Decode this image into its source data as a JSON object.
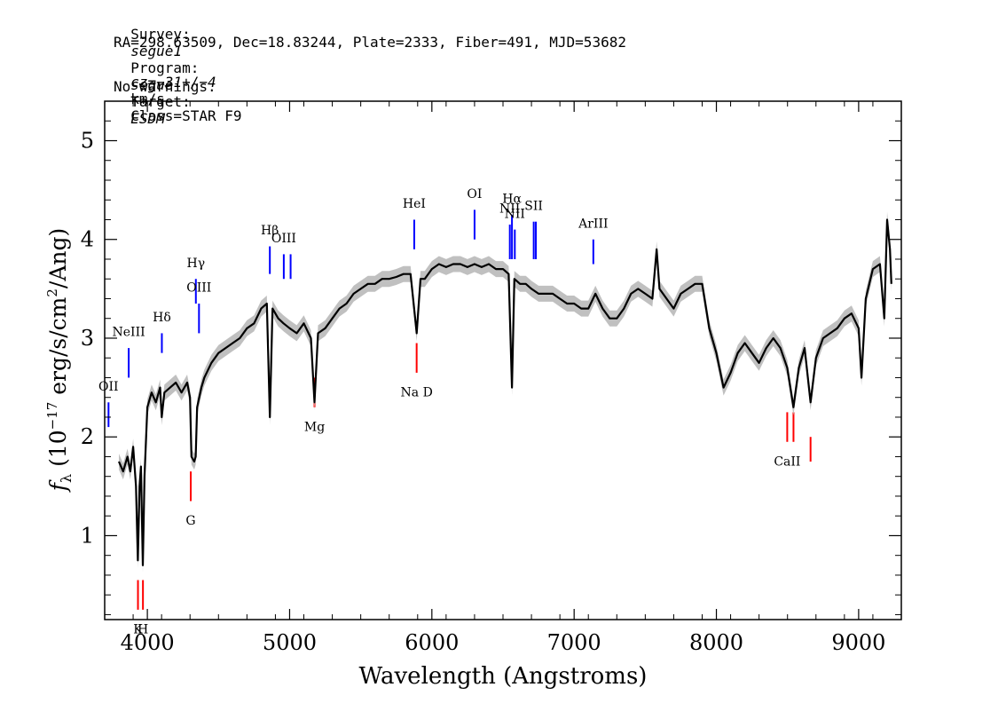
{
  "header": {
    "survey_label": "Survey:",
    "survey": "segue1",
    "program_label": "Program:",
    "program": "segue",
    "target_label": "Target:",
    "target": "ESDM",
    "line2": "RA=298.63509, Dec=18.83244, Plate=2333, Fiber=491, MJD=53682",
    "cz_label": "cz=",
    "cz_value": "−31+/−4",
    "cz_unit": "km/s",
    "class_text": "Class=STAR F9",
    "warnings": "No warnings."
  },
  "chart_data": {
    "type": "line",
    "xlabel": "Wavelength (Angstroms)",
    "ylabel": "f_λ (10^-17 erg/s/cm^2/Ang)",
    "xlim": [
      3700,
      9300
    ],
    "ylim": [
      0.15,
      5.4
    ],
    "x_ticks": [
      4000,
      5000,
      6000,
      7000,
      8000,
      9000
    ],
    "y_ticks": [
      1,
      2,
      3,
      4,
      5
    ],
    "grid": false,
    "series": [
      {
        "color": "#000000",
        "error_color": "#c0c0c0",
        "points": [
          [
            3800,
            1.75
          ],
          [
            3830,
            1.65
          ],
          [
            3860,
            1.8
          ],
          [
            3880,
            1.65
          ],
          [
            3900,
            1.9
          ],
          [
            3920,
            1.5
          ],
          [
            3933,
            0.75
          ],
          [
            3945,
            1.5
          ],
          [
            3955,
            1.7
          ],
          [
            3968,
            0.7
          ],
          [
            3980,
            1.6
          ],
          [
            4000,
            2.3
          ],
          [
            4030,
            2.45
          ],
          [
            4060,
            2.35
          ],
          [
            4090,
            2.5
          ],
          [
            4101,
            2.2
          ],
          [
            4120,
            2.45
          ],
          [
            4160,
            2.5
          ],
          [
            4200,
            2.55
          ],
          [
            4240,
            2.45
          ],
          [
            4280,
            2.55
          ],
          [
            4300,
            2.4
          ],
          [
            4310,
            1.8
          ],
          [
            4330,
            1.75
          ],
          [
            4340,
            1.8
          ],
          [
            4350,
            2.3
          ],
          [
            4380,
            2.5
          ],
          [
            4400,
            2.6
          ],
          [
            4450,
            2.75
          ],
          [
            4500,
            2.85
          ],
          [
            4550,
            2.9
          ],
          [
            4600,
            2.95
          ],
          [
            4650,
            3.0
          ],
          [
            4700,
            3.1
          ],
          [
            4750,
            3.15
          ],
          [
            4800,
            3.3
          ],
          [
            4840,
            3.35
          ],
          [
            4861,
            2.2
          ],
          [
            4880,
            3.3
          ],
          [
            4920,
            3.2
          ],
          [
            4957,
            3.15
          ],
          [
            5000,
            3.1
          ],
          [
            5050,
            3.05
          ],
          [
            5100,
            3.15
          ],
          [
            5150,
            3.0
          ],
          [
            5175,
            2.35
          ],
          [
            5200,
            3.05
          ],
          [
            5250,
            3.1
          ],
          [
            5300,
            3.2
          ],
          [
            5350,
            3.3
          ],
          [
            5400,
            3.35
          ],
          [
            5450,
            3.45
          ],
          [
            5500,
            3.5
          ],
          [
            5550,
            3.55
          ],
          [
            5600,
            3.55
          ],
          [
            5650,
            3.6
          ],
          [
            5700,
            3.6
          ],
          [
            5750,
            3.62
          ],
          [
            5800,
            3.65
          ],
          [
            5850,
            3.65
          ],
          [
            5893,
            3.05
          ],
          [
            5920,
            3.6
          ],
          [
            5950,
            3.6
          ],
          [
            6000,
            3.7
          ],
          [
            6050,
            3.75
          ],
          [
            6100,
            3.72
          ],
          [
            6150,
            3.75
          ],
          [
            6200,
            3.75
          ],
          [
            6250,
            3.72
          ],
          [
            6300,
            3.75
          ],
          [
            6350,
            3.72
          ],
          [
            6400,
            3.75
          ],
          [
            6450,
            3.7
          ],
          [
            6500,
            3.7
          ],
          [
            6540,
            3.65
          ],
          [
            6563,
            2.5
          ],
          [
            6580,
            3.6
          ],
          [
            6620,
            3.55
          ],
          [
            6660,
            3.55
          ],
          [
            6700,
            3.5
          ],
          [
            6750,
            3.45
          ],
          [
            6800,
            3.45
          ],
          [
            6850,
            3.45
          ],
          [
            6900,
            3.4
          ],
          [
            6950,
            3.35
          ],
          [
            7000,
            3.35
          ],
          [
            7050,
            3.3
          ],
          [
            7100,
            3.3
          ],
          [
            7150,
            3.45
          ],
          [
            7200,
            3.3
          ],
          [
            7250,
            3.2
          ],
          [
            7300,
            3.2
          ],
          [
            7350,
            3.3
          ],
          [
            7400,
            3.45
          ],
          [
            7450,
            3.5
          ],
          [
            7500,
            3.45
          ],
          [
            7550,
            3.4
          ],
          [
            7580,
            3.9
          ],
          [
            7600,
            3.5
          ],
          [
            7650,
            3.4
          ],
          [
            7700,
            3.3
          ],
          [
            7750,
            3.45
          ],
          [
            7800,
            3.5
          ],
          [
            7850,
            3.55
          ],
          [
            7900,
            3.55
          ],
          [
            7950,
            3.1
          ],
          [
            8000,
            2.85
          ],
          [
            8050,
            2.5
          ],
          [
            8100,
            2.65
          ],
          [
            8150,
            2.85
          ],
          [
            8200,
            2.95
          ],
          [
            8250,
            2.85
          ],
          [
            8300,
            2.75
          ],
          [
            8350,
            2.9
          ],
          [
            8400,
            3.0
          ],
          [
            8450,
            2.9
          ],
          [
            8498,
            2.7
          ],
          [
            8542,
            2.3
          ],
          [
            8580,
            2.7
          ],
          [
            8620,
            2.9
          ],
          [
            8662,
            2.35
          ],
          [
            8700,
            2.8
          ],
          [
            8750,
            3.0
          ],
          [
            8800,
            3.05
          ],
          [
            8850,
            3.1
          ],
          [
            8900,
            3.2
          ],
          [
            8950,
            3.25
          ],
          [
            9000,
            3.1
          ],
          [
            9020,
            2.6
          ],
          [
            9050,
            3.4
          ],
          [
            9100,
            3.7
          ],
          [
            9150,
            3.75
          ],
          [
            9180,
            3.2
          ],
          [
            9200,
            4.2
          ],
          [
            9220,
            3.9
          ],
          [
            9230,
            3.55
          ]
        ]
      }
    ],
    "emission_lines": [
      {
        "label": "OII",
        "wavelength": 3727,
        "y_bottom": 2.1,
        "y_top": 2.35,
        "label_y": 2.47
      },
      {
        "label": "NeIII",
        "wavelength": 3869,
        "y_bottom": 2.6,
        "y_top": 2.9,
        "label_y": 3.02
      },
      {
        "label": "Hδ",
        "wavelength": 4102,
        "y_bottom": 2.85,
        "y_top": 3.05,
        "label_y": 3.17
      },
      {
        "label": "Hγ",
        "wavelength": 4341,
        "y_bottom": 3.35,
        "y_top": 3.6,
        "label_y": 3.72
      },
      {
        "label": "OIII",
        "wavelength": 4363,
        "y_bottom": 3.05,
        "y_top": 3.35,
        "label_y": 3.47
      },
      {
        "label": "Hβ",
        "wavelength": 4861,
        "y_bottom": 3.65,
        "y_top": 3.93,
        "label_y": 4.05
      },
      {
        "label": "OIII",
        "wavelength": 4959,
        "y_bottom": 3.6,
        "y_top": 3.85,
        "label_y": 3.97
      },
      {
        "label": "",
        "wavelength": 5007,
        "y_bottom": 3.6,
        "y_top": 3.85
      },
      {
        "label": "HeI",
        "wavelength": 5876,
        "y_bottom": 3.9,
        "y_top": 4.2,
        "label_y": 4.32
      },
      {
        "label": "OI",
        "wavelength": 6300,
        "y_bottom": 4.0,
        "y_top": 4.3,
        "label_y": 4.42
      },
      {
        "label": "NII",
        "wavelength": 6548,
        "y_bottom": 3.8,
        "y_top": 4.15,
        "label_y": 4.27
      },
      {
        "label": "Hα",
        "wavelength": 6563,
        "y_bottom": 3.8,
        "y_top": 4.25,
        "label_y": 4.37
      },
      {
        "label": "NII",
        "wavelength": 6583,
        "y_bottom": 3.8,
        "y_top": 4.1,
        "label_y": 4.22
      },
      {
        "label": "SII",
        "wavelength": 6716,
        "y_bottom": 3.8,
        "y_top": 4.18,
        "label_y": 4.3
      },
      {
        "label": "",
        "wavelength": 6731,
        "y_bottom": 3.8,
        "y_top": 4.18
      },
      {
        "label": "ArIII",
        "wavelength": 7135,
        "y_bottom": 3.75,
        "y_top": 4.0,
        "label_y": 4.12
      }
    ],
    "absorption_lines": [
      {
        "label": "K",
        "wavelength": 3934,
        "y_top": 0.55,
        "y_bottom": 0.25,
        "label_y": 0.1
      },
      {
        "label": "H",
        "wavelength": 3969,
        "y_top": 0.55,
        "y_bottom": 0.25,
        "label_y": 0.1
      },
      {
        "label": "G",
        "wavelength": 4305,
        "y_top": 1.65,
        "y_bottom": 1.35,
        "label_y": 1.2
      },
      {
        "label": "Mg",
        "wavelength": 5175,
        "y_top": 2.6,
        "y_bottom": 2.3,
        "label_y": 2.15
      },
      {
        "label": "Na D",
        "wavelength": 5893,
        "y_top": 2.95,
        "y_bottom": 2.65,
        "label_y": 2.5
      },
      {
        "label": "CaII",
        "wavelength": 8498,
        "y_top": 2.25,
        "y_bottom": 1.95,
        "label_y": 1.8
      },
      {
        "label": "",
        "wavelength": 8542,
        "y_top": 2.25,
        "y_bottom": 1.95
      },
      {
        "label": "",
        "wavelength": 8662,
        "y_top": 2.0,
        "y_bottom": 1.75
      }
    ],
    "colors": {
      "emission": "#0000ff",
      "absorption": "#ff0000",
      "error": "#c0c0c0",
      "flux": "#000000"
    }
  }
}
